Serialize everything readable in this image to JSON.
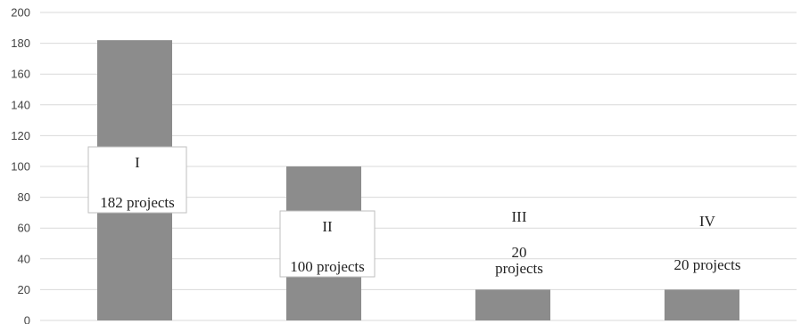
{
  "chart_data": {
    "type": "bar",
    "categories": [
      "I",
      "II",
      "III",
      "IV"
    ],
    "values": [
      182,
      100,
      20,
      20
    ],
    "data_labels": [
      [
        "I",
        "",
        "182 projects"
      ],
      [
        "II",
        "",
        "100 projects"
      ],
      [
        "III",
        "",
        "20",
        "projects"
      ],
      [
        "IV",
        "",
        "20 projects"
      ]
    ],
    "label_boxed": [
      true,
      true,
      false,
      false
    ],
    "ylim": [
      0,
      200
    ],
    "yticks": [
      0,
      20,
      40,
      60,
      80,
      100,
      120,
      140,
      160,
      180,
      200
    ],
    "grid": true,
    "title": "",
    "xlabel": "",
    "ylabel": "",
    "colors": {
      "bar": "#8c8c8c",
      "grid": "#d9d9d9",
      "label_box_border": "#bfbfbf"
    }
  }
}
